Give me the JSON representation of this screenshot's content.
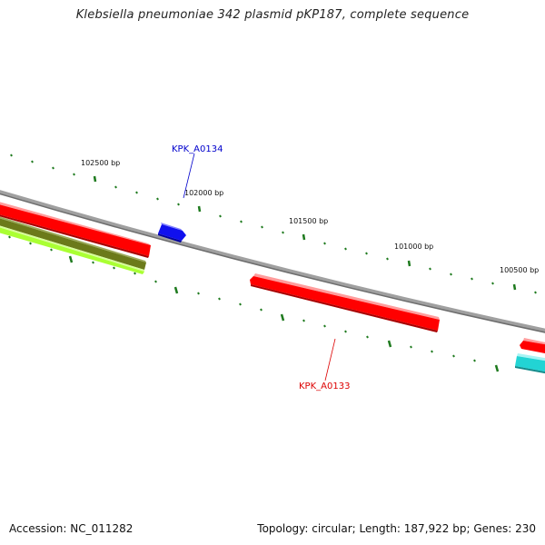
{
  "title": "Klebsiella pneumoniae 342 plasmid pKP187, complete sequence",
  "footer": {
    "accession": "Accession: NC_011282",
    "summary": "Topology: circular; Length: 187,922 bp; Genes: 230"
  },
  "scale_labels": [
    "102500 bp",
    "102000 bp",
    "101500 bp",
    "101000 bp",
    "100500 bp"
  ],
  "gene_labels": {
    "upper": "KPK_A0134",
    "lower": "KPK_A0133"
  },
  "colors": {
    "backbone": "#888888",
    "tick": "#1e7a1e",
    "red_gene": "#ff0000",
    "blue_gene": "#1010ee",
    "olive_gene": "#6b7a1a",
    "lime_gene": "#aaff33",
    "cyan_gene": "#22d4d4",
    "upper_label": "#0000cc",
    "lower_label": "#dd0000"
  }
}
